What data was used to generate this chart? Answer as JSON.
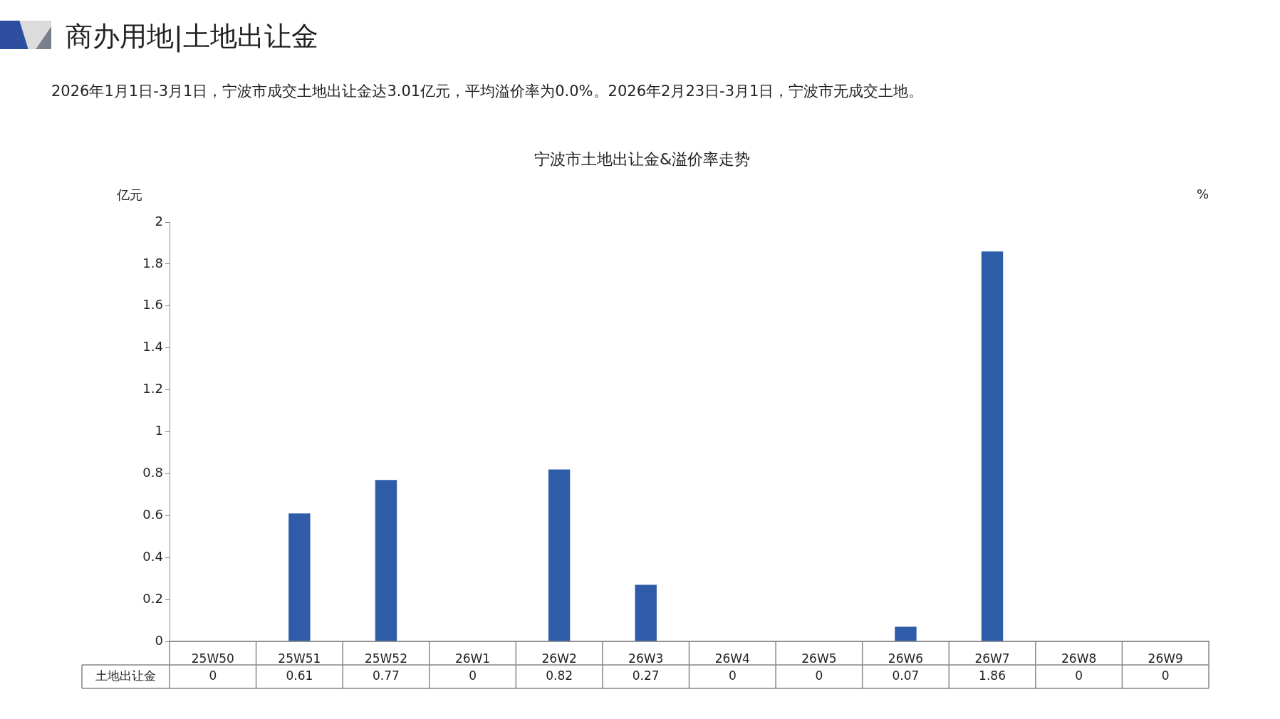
{
  "chart_data": {
    "type": "bar",
    "title": "宁波市土地出让金&溢价率走势",
    "subtitle": "商办用地|土地出让金",
    "annotations": [
      "2026年1月1日-3月1日，宁波市成交土地出让金达3.01亿元，平均溢价率为0.0%。2026年2月23日-3月1日，宁波市无成交土地。"
    ],
    "ylabel": "亿元",
    "y2label": "%",
    "categories": [
      "25W50",
      "25W51",
      "25W52",
      "26W1",
      "26W2",
      "26W3",
      "26W4",
      "26W5",
      "26W6",
      "26W7",
      "26W8",
      "26W9"
    ],
    "series": [
      {
        "name": "土地出让金",
        "color": "#2e5ca8",
        "values": [
          0,
          0.61,
          0.77,
          0,
          0.82,
          0.27,
          0,
          0,
          0.07,
          1.86,
          0,
          0
        ]
      }
    ],
    "ylim": [
      0,
      2
    ],
    "yticks": [
      0,
      0.2,
      0.4,
      0.6,
      0.8,
      1,
      1.2,
      1.4,
      1.6,
      1.8,
      2
    ],
    "data_labels": true,
    "grid": false,
    "legend": false
  }
}
